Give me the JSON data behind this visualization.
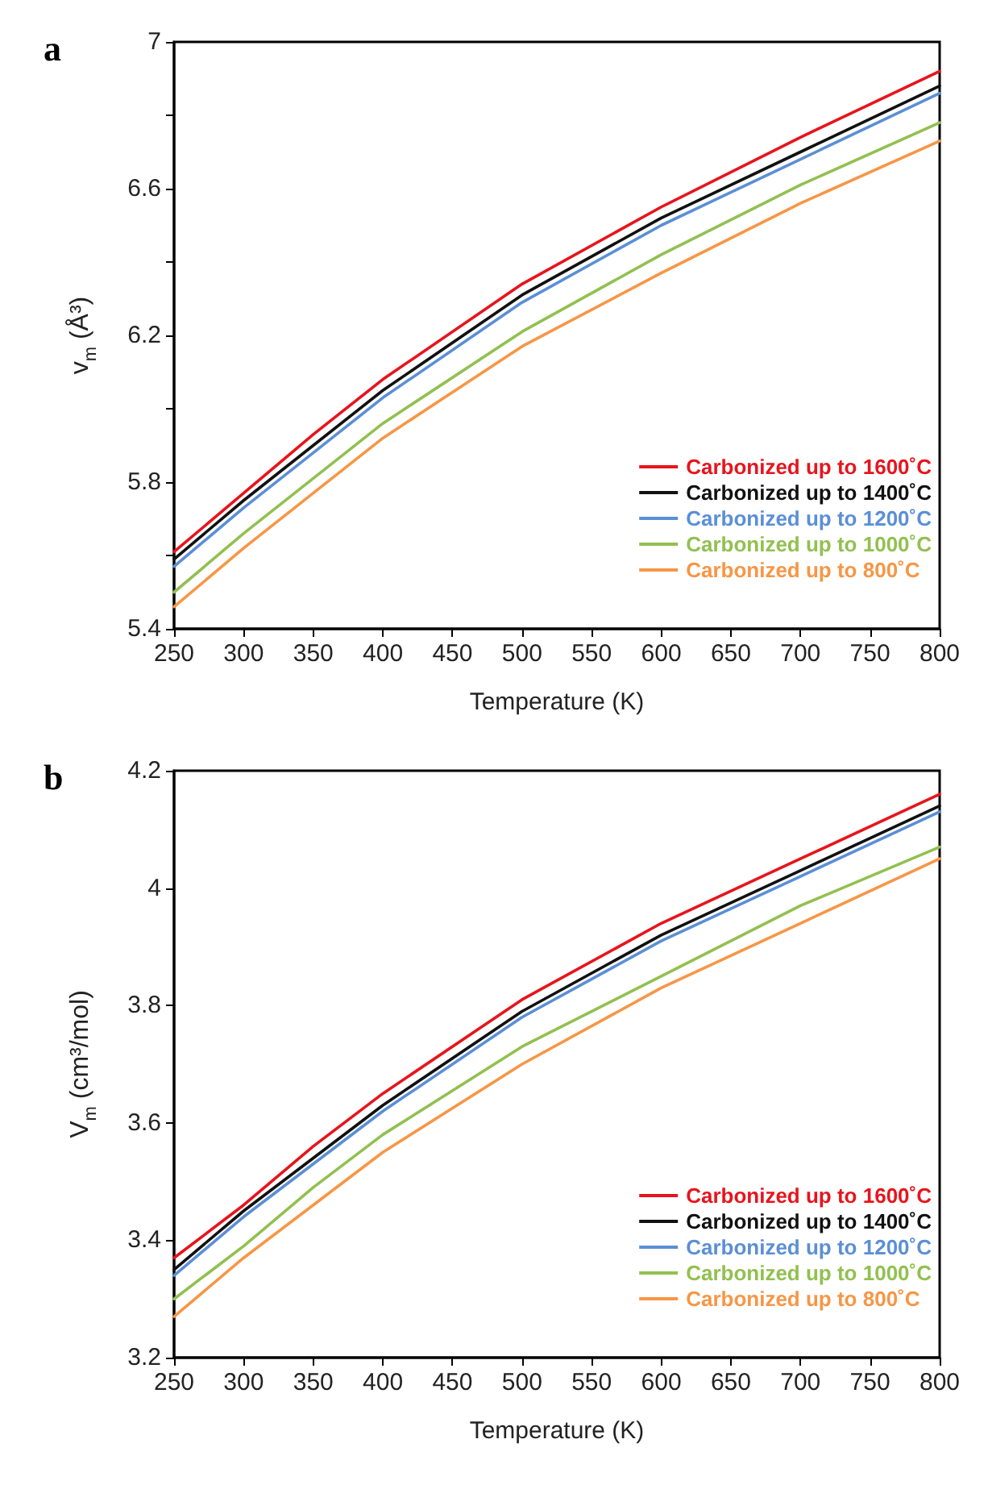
{
  "chart_data": [
    {
      "type": "line",
      "title": "a",
      "xlabel": "Temperature (K)",
      "ylabel": "v$_{m}$ (Å³)",
      "x": [
        250,
        300,
        350,
        400,
        500,
        600,
        700,
        800
      ],
      "xlim": [
        250,
        800
      ],
      "xticks": [
        250,
        300,
        350,
        400,
        450,
        500,
        550,
        600,
        650,
        700,
        750,
        800
      ],
      "ylim": [
        5.4,
        7
      ],
      "yticks": [
        5.4,
        {
          "value": 5.6,
          "label": null
        },
        5.8,
        {
          "value": 6.0,
          "label": null
        },
        6.2,
        {
          "value": 6.4,
          "label": null
        },
        6.6,
        {
          "value": 6.8,
          "label": null
        },
        7
      ],
      "grid": false,
      "legend": "bottom right",
      "marker": "none",
      "line_style": "solid",
      "series": [
        {
          "name": "Carbonized up to 1600˚C",
          "color": "#e8141c",
          "values": [
            5.61,
            5.77,
            5.93,
            6.08,
            6.34,
            6.55,
            6.74,
            6.92
          ]
        },
        {
          "name": "Carbonized up to 1400˚C",
          "color": "#111111",
          "values": [
            5.59,
            5.75,
            5.9,
            6.05,
            6.31,
            6.52,
            6.7,
            6.88
          ]
        },
        {
          "name": "Carbonized up to 1200˚C",
          "color": "#5b8fd6",
          "values": [
            5.57,
            5.73,
            5.88,
            6.03,
            6.29,
            6.5,
            6.68,
            6.86
          ]
        },
        {
          "name": "Carbonized up to 1000˚C",
          "color": "#92c050",
          "values": [
            5.5,
            5.66,
            5.81,
            5.96,
            6.21,
            6.42,
            6.61,
            6.78
          ]
        },
        {
          "name": "Carbonized up to 800˚C",
          "color": "#f79646",
          "values": [
            5.46,
            5.62,
            5.77,
            5.92,
            6.17,
            6.37,
            6.56,
            6.73
          ]
        }
      ]
    },
    {
      "type": "line",
      "title": "b",
      "xlabel": "Temperature (K)",
      "ylabel": "V$_{m}$ (cm³/mol)",
      "x": [
        250,
        300,
        350,
        400,
        500,
        600,
        700,
        800
      ],
      "xlim": [
        250,
        800
      ],
      "xticks": [
        250,
        300,
        350,
        400,
        450,
        500,
        550,
        600,
        650,
        700,
        750,
        800
      ],
      "ylim": [
        3.2,
        4.2
      ],
      "yticks": [
        3.2,
        3.4,
        3.6,
        3.8,
        4,
        4.2
      ],
      "grid": false,
      "legend": "bottom right",
      "marker": "none",
      "line_style": "solid",
      "series": [
        {
          "name": "Carbonized up to 1600˚C",
          "color": "#e8141c",
          "values": [
            3.37,
            3.46,
            3.56,
            3.65,
            3.81,
            3.94,
            4.05,
            4.16
          ]
        },
        {
          "name": "Carbonized up to 1400˚C",
          "color": "#111111",
          "values": [
            3.35,
            3.45,
            3.54,
            3.63,
            3.79,
            3.92,
            4.03,
            4.14
          ]
        },
        {
          "name": "Carbonized up to 1200˚C",
          "color": "#5b8fd6",
          "values": [
            3.34,
            3.44,
            3.53,
            3.62,
            3.78,
            3.91,
            4.02,
            4.13
          ]
        },
        {
          "name": "Carbonized up to 1000˚C",
          "color": "#92c050",
          "values": [
            3.3,
            3.39,
            3.49,
            3.58,
            3.73,
            3.85,
            3.97,
            4.07
          ]
        },
        {
          "name": "Carbonized up to 800˚C",
          "color": "#f79646",
          "values": [
            3.27,
            3.37,
            3.46,
            3.55,
            3.7,
            3.83,
            3.94,
            4.05
          ]
        }
      ]
    }
  ]
}
